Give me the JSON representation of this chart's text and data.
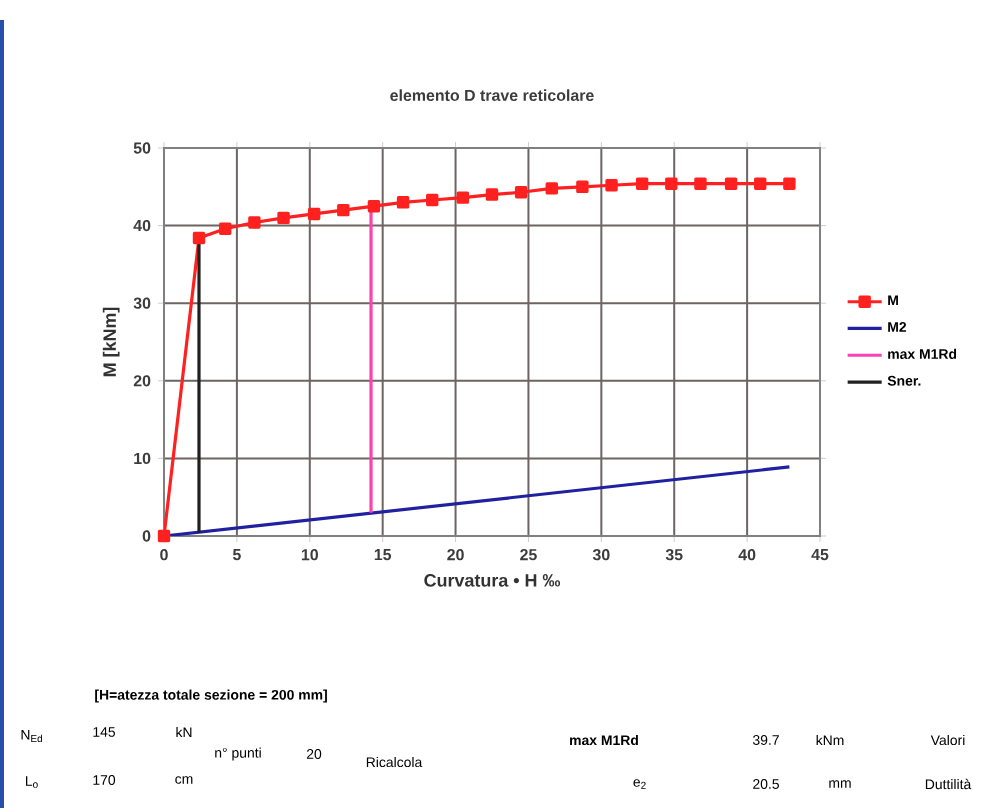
{
  "chart_data": {
    "type": "line",
    "title": "elemento D trave reticolare",
    "xlabel": "Curvatura • H ‰",
    "ylabel": "M [kNm]",
    "xlim": [
      0,
      45
    ],
    "ylim": [
      0,
      50
    ],
    "xticks": [
      0,
      5,
      10,
      15,
      20,
      25,
      30,
      35,
      40,
      45
    ],
    "yticks": [
      0,
      10,
      20,
      30,
      40,
      50
    ],
    "grid": true,
    "legend": "right",
    "series": [
      {
        "name": "M",
        "color": "#ff2020",
        "marker": "square",
        "x": [
          0,
          2.4,
          4.2,
          6.2,
          8.2,
          10.3,
          12.3,
          14.4,
          16.4,
          18.4,
          20.5,
          22.5,
          24.5,
          26.6,
          28.7,
          30.7,
          32.8,
          34.8,
          36.8,
          38.9,
          40.9,
          42.9
        ],
        "values": [
          0,
          38.4,
          39.6,
          40.4,
          41.0,
          41.5,
          42.0,
          42.5,
          43.0,
          43.3,
          43.6,
          44.0,
          44.3,
          44.8,
          45.0,
          45.2,
          45.4,
          45.4,
          45.4,
          45.4,
          45.4,
          45.4
        ]
      },
      {
        "name": "M2",
        "color": "#2020a0",
        "marker": "none",
        "x": [
          0,
          42.9
        ],
        "values": [
          0,
          8.9
        ]
      },
      {
        "name": "max M1Rd",
        "color": "#ff40b0",
        "marker": "none",
        "x": [
          14.2,
          14.2
        ],
        "values": [
          3.0,
          42.5
        ]
      },
      {
        "name": "Sner.",
        "color": "#202020",
        "marker": "none",
        "x": [
          2.4,
          2.4
        ],
        "values": [
          0.4,
          38.4
        ]
      }
    ],
    "annotations": [
      "[H=atezza totale sezione = 200 mm]",
      "N$_{Ed}$",
      "145",
      "kN",
      "L$_{o}$",
      "170",
      "cm",
      "n° punti",
      "20",
      "Ricalcola",
      "max M1Rd",
      "39.7",
      "kNm",
      "e$_{2}$",
      "20.5",
      "mm",
      "Valori",
      "Duttilità"
    ]
  }
}
